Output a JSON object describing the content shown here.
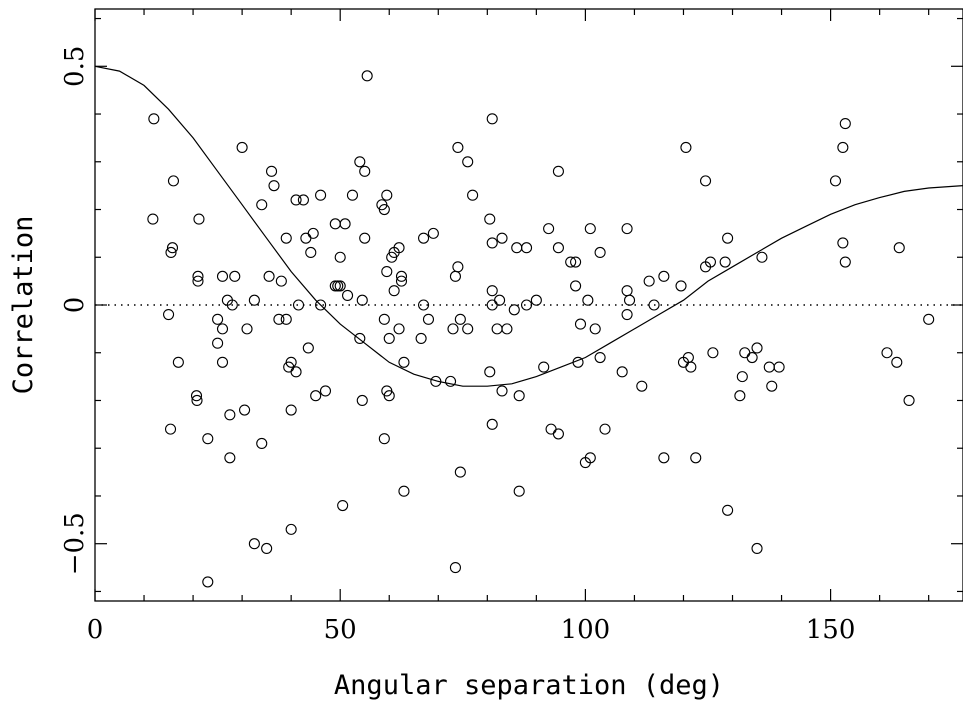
{
  "chart_data": {
    "type": "scatter",
    "title": "",
    "xlabel": "Angular separation (deg)",
    "ylabel": "Correlation",
    "xlim": [
      0,
      177
    ],
    "ylim": [
      -0.62,
      0.62
    ],
    "x_ticks": [
      0,
      50,
      100,
      150
    ],
    "x_tick_labels": [
      "0",
      "50",
      "100",
      "150"
    ],
    "y_ticks": [
      -0.5,
      0,
      0.5
    ],
    "y_tick_labels": [
      "−0.5",
      "0",
      "0.5"
    ],
    "grid": false,
    "reference_line": {
      "y": 0,
      "style": "dotted"
    },
    "series": [
      {
        "type": "scatter",
        "marker": "open-circle",
        "points": [
          [
            12,
            0.39
          ],
          [
            11.8,
            0.18
          ],
          [
            16,
            0.26
          ],
          [
            15.5,
            0.11
          ],
          [
            15.8,
            0.12
          ],
          [
            15,
            -0.02
          ],
          [
            17,
            -0.12
          ],
          [
            15.4,
            -0.26
          ],
          [
            21,
            0.06
          ],
          [
            21,
            0.05
          ],
          [
            21.2,
            0.18
          ],
          [
            20.7,
            -0.19
          ],
          [
            20.8,
            -0.2
          ],
          [
            23,
            -0.28
          ],
          [
            23,
            -0.58
          ],
          [
            25,
            -0.03
          ],
          [
            25,
            -0.08
          ],
          [
            26,
            0.06
          ],
          [
            26,
            -0.05
          ],
          [
            26,
            -0.12
          ],
          [
            27,
            0.01
          ],
          [
            27.5,
            -0.23
          ],
          [
            27.5,
            -0.32
          ],
          [
            28,
            0.0
          ],
          [
            28.5,
            0.06
          ],
          [
            30,
            0.33
          ],
          [
            30.5,
            -0.22
          ],
          [
            31,
            -0.05
          ],
          [
            32.5,
            0.01
          ],
          [
            32.5,
            -0.5
          ],
          [
            34,
            -0.29
          ],
          [
            34,
            0.21
          ],
          [
            35,
            -0.51
          ],
          [
            35.5,
            0.06
          ],
          [
            36,
            0.28
          ],
          [
            36.5,
            0.25
          ],
          [
            37.5,
            -0.03
          ],
          [
            38,
            0.05
          ],
          [
            39,
            0.14
          ],
          [
            39,
            -0.03
          ],
          [
            39.5,
            -0.13
          ],
          [
            40,
            -0.12
          ],
          [
            40,
            -0.22
          ],
          [
            40,
            -0.47
          ],
          [
            41,
            0.22
          ],
          [
            41,
            -0.14
          ],
          [
            41.5,
            0.0
          ],
          [
            42.5,
            0.22
          ],
          [
            43,
            0.14
          ],
          [
            43.5,
            -0.09
          ],
          [
            44,
            0.11
          ],
          [
            44.5,
            0.15
          ],
          [
            45,
            -0.19
          ],
          [
            46,
            0.23
          ],
          [
            46,
            0.0
          ],
          [
            47,
            -0.18
          ],
          [
            49,
            0.17
          ],
          [
            49,
            0.04
          ],
          [
            49.5,
            0.04
          ],
          [
            50,
            0.04
          ],
          [
            50,
            0.1
          ],
          [
            51,
            0.17
          ],
          [
            50.5,
            -0.42
          ],
          [
            51.5,
            0.02
          ],
          [
            52.5,
            0.23
          ],
          [
            54,
            0.3
          ],
          [
            54.5,
            0.01
          ],
          [
            54,
            -0.07
          ],
          [
            54.5,
            -0.2
          ],
          [
            55,
            0.28
          ],
          [
            55.5,
            0.48
          ],
          [
            55,
            0.14
          ],
          [
            58.5,
            0.21
          ],
          [
            59,
            0.2
          ],
          [
            59.5,
            0.23
          ],
          [
            59.5,
            0.07
          ],
          [
            59,
            -0.03
          ],
          [
            60,
            -0.07
          ],
          [
            59.5,
            -0.18
          ],
          [
            60,
            -0.19
          ],
          [
            59,
            -0.28
          ],
          [
            61,
            0.11
          ],
          [
            60.5,
            0.1
          ],
          [
            61,
            0.03
          ],
          [
            62,
            0.12
          ],
          [
            62.5,
            0.06
          ],
          [
            62.5,
            0.05
          ],
          [
            62,
            -0.05
          ],
          [
            63,
            -0.12
          ],
          [
            63,
            -0.39
          ],
          [
            66.5,
            -0.07
          ],
          [
            67,
            0.14
          ],
          [
            67,
            0.0
          ],
          [
            68,
            -0.03
          ],
          [
            69,
            0.15
          ],
          [
            69.5,
            -0.16
          ],
          [
            72.5,
            -0.16
          ],
          [
            73,
            -0.05
          ],
          [
            73.5,
            0.06
          ],
          [
            73.5,
            -0.55
          ],
          [
            74,
            0.33
          ],
          [
            74,
            0.08
          ],
          [
            74.5,
            -0.03
          ],
          [
            74.5,
            -0.35
          ],
          [
            76,
            0.3
          ],
          [
            76,
            -0.05
          ],
          [
            77,
            0.23
          ],
          [
            80.5,
            0.18
          ],
          [
            81,
            0.13
          ],
          [
            81,
            0.03
          ],
          [
            81,
            0.0
          ],
          [
            80.5,
            -0.14
          ],
          [
            81,
            -0.25
          ],
          [
            81,
            0.39
          ],
          [
            82.5,
            0.01
          ],
          [
            82,
            -0.05
          ],
          [
            83,
            0.14
          ],
          [
            83,
            -0.18
          ],
          [
            84,
            -0.05
          ],
          [
            85.5,
            -0.01
          ],
          [
            86,
            0.12
          ],
          [
            86.5,
            -0.19
          ],
          [
            86.5,
            -0.39
          ],
          [
            88,
            0.12
          ],
          [
            88,
            0.0
          ],
          [
            90,
            0.01
          ],
          [
            91.5,
            -0.13
          ],
          [
            92.5,
            0.16
          ],
          [
            93,
            -0.26
          ],
          [
            94.5,
            0.28
          ],
          [
            94.5,
            0.12
          ],
          [
            94.5,
            -0.27
          ],
          [
            97,
            0.09
          ],
          [
            98,
            0.09
          ],
          [
            98,
            0.04
          ],
          [
            98.5,
            -0.12
          ],
          [
            99,
            -0.04
          ],
          [
            100,
            -0.33
          ],
          [
            100.5,
            0.01
          ],
          [
            101,
            0.16
          ],
          [
            101,
            -0.32
          ],
          [
            102,
            -0.05
          ],
          [
            103,
            -0.11
          ],
          [
            103,
            0.11
          ],
          [
            104,
            -0.26
          ],
          [
            107.5,
            -0.14
          ],
          [
            108.5,
            0.16
          ],
          [
            108.5,
            0.03
          ],
          [
            109,
            0.01
          ],
          [
            108.5,
            -0.02
          ],
          [
            111.5,
            -0.17
          ],
          [
            113,
            0.05
          ],
          [
            114,
            0.0
          ],
          [
            116,
            0.06
          ],
          [
            116,
            -0.32
          ],
          [
            119.5,
            0.04
          ],
          [
            120,
            -0.12
          ],
          [
            120.5,
            0.33
          ],
          [
            121,
            -0.11
          ],
          [
            121.5,
            -0.13
          ],
          [
            122.5,
            -0.32
          ],
          [
            124.5,
            0.26
          ],
          [
            124.5,
            0.08
          ],
          [
            125.5,
            0.09
          ],
          [
            126,
            -0.1
          ],
          [
            128.5,
            0.09
          ],
          [
            129,
            0.14
          ],
          [
            129,
            -0.43
          ],
          [
            131.5,
            -0.19
          ],
          [
            132,
            -0.15
          ],
          [
            132.5,
            -0.1
          ],
          [
            134,
            -0.11
          ],
          [
            135,
            -0.09
          ],
          [
            135,
            -0.51
          ],
          [
            136,
            0.1
          ],
          [
            137.5,
            -0.13
          ],
          [
            138,
            -0.17
          ],
          [
            139.5,
            -0.13
          ],
          [
            151,
            0.26
          ],
          [
            152.5,
            0.33
          ],
          [
            152.5,
            0.13
          ],
          [
            153,
            0.38
          ],
          [
            153,
            0.09
          ],
          [
            161.5,
            -0.1
          ],
          [
            163.5,
            -0.12
          ],
          [
            164,
            0.12
          ],
          [
            166,
            -0.2
          ],
          [
            170,
            -0.03
          ]
        ]
      },
      {
        "type": "line",
        "style": "solid",
        "points": [
          [
            0,
            0.5
          ],
          [
            5,
            0.49
          ],
          [
            10,
            0.46
          ],
          [
            15,
            0.41
          ],
          [
            20,
            0.35
          ],
          [
            25,
            0.28
          ],
          [
            30,
            0.21
          ],
          [
            35,
            0.14
          ],
          [
            40,
            0.07
          ],
          [
            45,
            0.01
          ],
          [
            50,
            -0.04
          ],
          [
            55,
            -0.08
          ],
          [
            60,
            -0.12
          ],
          [
            65,
            -0.145
          ],
          [
            70,
            -0.16
          ],
          [
            75,
            -0.17
          ],
          [
            80,
            -0.17
          ],
          [
            85,
            -0.165
          ],
          [
            90,
            -0.15
          ],
          [
            95,
            -0.13
          ],
          [
            100,
            -0.11
          ],
          [
            105,
            -0.08
          ],
          [
            110,
            -0.05
          ],
          [
            115,
            -0.02
          ],
          [
            120,
            0.01
          ],
          [
            125,
            0.05
          ],
          [
            130,
            0.08
          ],
          [
            135,
            0.11
          ],
          [
            140,
            0.14
          ],
          [
            145,
            0.165
          ],
          [
            150,
            0.19
          ],
          [
            155,
            0.21
          ],
          [
            160,
            0.225
          ],
          [
            165,
            0.238
          ],
          [
            170,
            0.245
          ],
          [
            177,
            0.25
          ]
        ]
      }
    ]
  }
}
